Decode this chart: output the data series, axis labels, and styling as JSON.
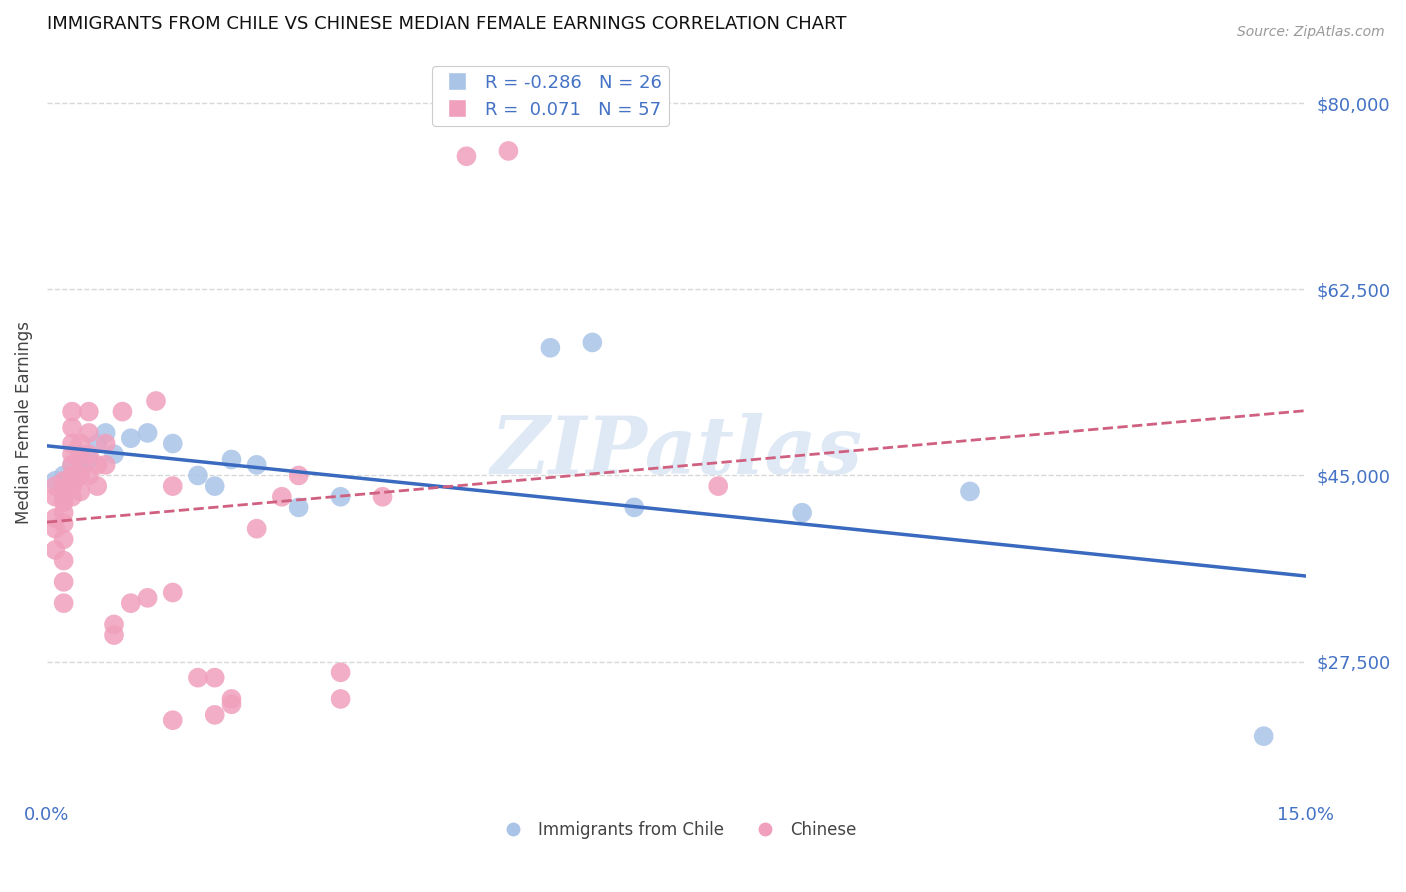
{
  "title": "IMMIGRANTS FROM CHILE VS CHINESE MEDIAN FEMALE EARNINGS CORRELATION CHART",
  "source": "Source: ZipAtlas.com",
  "ylabel": "Median Female Earnings",
  "xlim": [
    0.0,
    0.15
  ],
  "ylim": [
    15000,
    85000
  ],
  "yticks": [
    27500,
    45000,
    62500,
    80000
  ],
  "ytick_labels": [
    "$27,500",
    "$45,000",
    "$62,500",
    "$80,000"
  ],
  "grid_color": "#d8d8d8",
  "background_color": "#ffffff",
  "chile_color": "#aac4e8",
  "chinese_color": "#f0a0bc",
  "chile_line_color": "#3a6abf",
  "chinese_line_color": "#d06080",
  "chile_R": -0.286,
  "chile_N": 26,
  "chinese_R": 0.071,
  "chinese_N": 57,
  "legend_label_chile": "Immigrants from Chile",
  "legend_label_chinese": "Chinese",
  "watermark": "ZIPatlas",
  "chile_scatter": [
    [
      0.001,
      44500
    ],
    [
      0.002,
      43000
    ],
    [
      0.002,
      45000
    ],
    [
      0.003,
      46000
    ],
    [
      0.003,
      44000
    ],
    [
      0.004,
      47000
    ],
    [
      0.004,
      45500
    ],
    [
      0.005,
      46500
    ],
    [
      0.006,
      48000
    ],
    [
      0.007,
      49000
    ],
    [
      0.008,
      47000
    ],
    [
      0.01,
      48500
    ],
    [
      0.012,
      49000
    ],
    [
      0.015,
      48000
    ],
    [
      0.018,
      45000
    ],
    [
      0.02,
      44000
    ],
    [
      0.022,
      46500
    ],
    [
      0.025,
      46000
    ],
    [
      0.03,
      42000
    ],
    [
      0.035,
      43000
    ],
    [
      0.06,
      57000
    ],
    [
      0.065,
      57500
    ],
    [
      0.07,
      42000
    ],
    [
      0.09,
      41500
    ],
    [
      0.11,
      43500
    ],
    [
      0.145,
      20500
    ]
  ],
  "chinese_scatter": [
    [
      0.001,
      44000
    ],
    [
      0.001,
      43000
    ],
    [
      0.001,
      41000
    ],
    [
      0.001,
      40000
    ],
    [
      0.001,
      38000
    ],
    [
      0.002,
      44500
    ],
    [
      0.002,
      43500
    ],
    [
      0.002,
      42500
    ],
    [
      0.002,
      41500
    ],
    [
      0.002,
      40500
    ],
    [
      0.002,
      39000
    ],
    [
      0.002,
      37000
    ],
    [
      0.002,
      35000
    ],
    [
      0.002,
      33000
    ],
    [
      0.003,
      48000
    ],
    [
      0.003,
      47000
    ],
    [
      0.003,
      46000
    ],
    [
      0.003,
      45000
    ],
    [
      0.003,
      44000
    ],
    [
      0.003,
      43000
    ],
    [
      0.003,
      49500
    ],
    [
      0.003,
      51000
    ],
    [
      0.004,
      48000
    ],
    [
      0.004,
      46500
    ],
    [
      0.004,
      45000
    ],
    [
      0.004,
      43500
    ],
    [
      0.005,
      49000
    ],
    [
      0.005,
      47000
    ],
    [
      0.005,
      45000
    ],
    [
      0.005,
      51000
    ],
    [
      0.006,
      46000
    ],
    [
      0.006,
      44000
    ],
    [
      0.007,
      48000
    ],
    [
      0.007,
      46000
    ],
    [
      0.008,
      31000
    ],
    [
      0.008,
      30000
    ],
    [
      0.009,
      51000
    ],
    [
      0.01,
      33000
    ],
    [
      0.012,
      33500
    ],
    [
      0.013,
      52000
    ],
    [
      0.015,
      44000
    ],
    [
      0.015,
      34000
    ],
    [
      0.015,
      22000
    ],
    [
      0.018,
      26000
    ],
    [
      0.02,
      26000
    ],
    [
      0.02,
      22500
    ],
    [
      0.022,
      24000
    ],
    [
      0.022,
      23500
    ],
    [
      0.025,
      40000
    ],
    [
      0.028,
      43000
    ],
    [
      0.03,
      45000
    ],
    [
      0.035,
      24000
    ],
    [
      0.035,
      26500
    ],
    [
      0.04,
      43000
    ],
    [
      0.05,
      75000
    ],
    [
      0.055,
      75500
    ],
    [
      0.08,
      44000
    ]
  ]
}
